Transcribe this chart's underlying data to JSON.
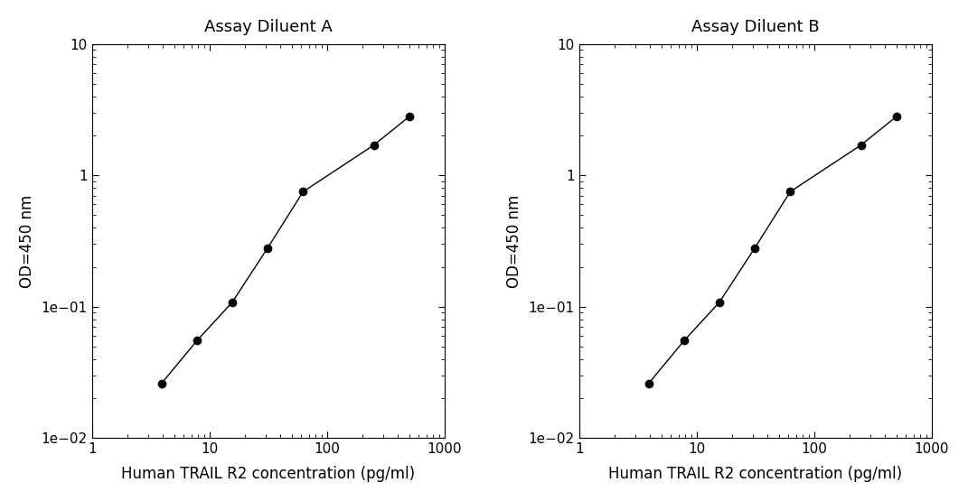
{
  "plot_A": {
    "title": "Assay Diluent A",
    "x": [
      3.9,
      7.8,
      15.6,
      31.25,
      62.5,
      250,
      500
    ],
    "y": [
      0.026,
      0.055,
      0.108,
      0.28,
      0.75,
      1.7,
      2.8
    ]
  },
  "plot_B": {
    "title": "Assay Diluent B",
    "x": [
      3.9,
      7.8,
      15.6,
      31.25,
      62.5,
      250,
      500
    ],
    "y": [
      0.026,
      0.055,
      0.108,
      0.28,
      0.75,
      1.7,
      2.8
    ]
  },
  "xlabel": "Human TRAIL R2 concentration (pg/ml)",
  "ylabel": "OD=450 nm",
  "xlim": [
    1,
    1000
  ],
  "ylim": [
    0.01,
    10
  ],
  "line_color": "#000000",
  "marker": "o",
  "marker_size": 6,
  "marker_color": "#000000",
  "title_fontsize": 13,
  "label_fontsize": 12,
  "tick_fontsize": 11,
  "background_color": "#ffffff"
}
